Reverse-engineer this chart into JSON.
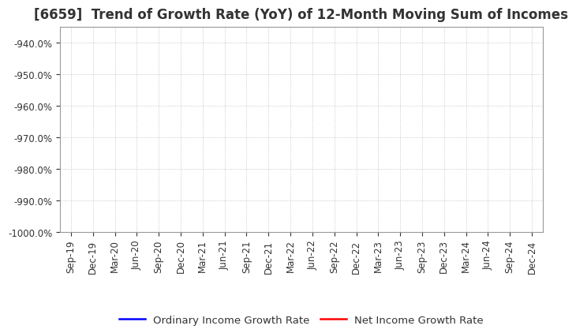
{
  "title": "[6659]  Trend of Growth Rate (YoY) of 12-Month Moving Sum of Incomes",
  "ylim": [
    -1000.0,
    -935.0
  ],
  "yticks": [
    -1000.0,
    -990.0,
    -980.0,
    -970.0,
    -960.0,
    -950.0,
    -940.0
  ],
  "xtick_labels": [
    "Sep-19",
    "Dec-19",
    "Mar-20",
    "Jun-20",
    "Sep-20",
    "Dec-20",
    "Mar-21",
    "Jun-21",
    "Sep-21",
    "Dec-21",
    "Mar-22",
    "Jun-22",
    "Sep-22",
    "Dec-22",
    "Mar-23",
    "Jun-23",
    "Sep-23",
    "Dec-23",
    "Mar-24",
    "Jun-24",
    "Sep-24",
    "Dec-24"
  ],
  "legend_entries": [
    {
      "label": "Ordinary Income Growth Rate",
      "color": "#0000FF"
    },
    {
      "label": "Net Income Growth Rate",
      "color": "#FF0000"
    }
  ],
  "background_color": "#FFFFFF",
  "grid_color": "#AAAAAA",
  "title_fontsize": 12,
  "tick_fontsize": 8.5,
  "legend_fontsize": 9.5
}
